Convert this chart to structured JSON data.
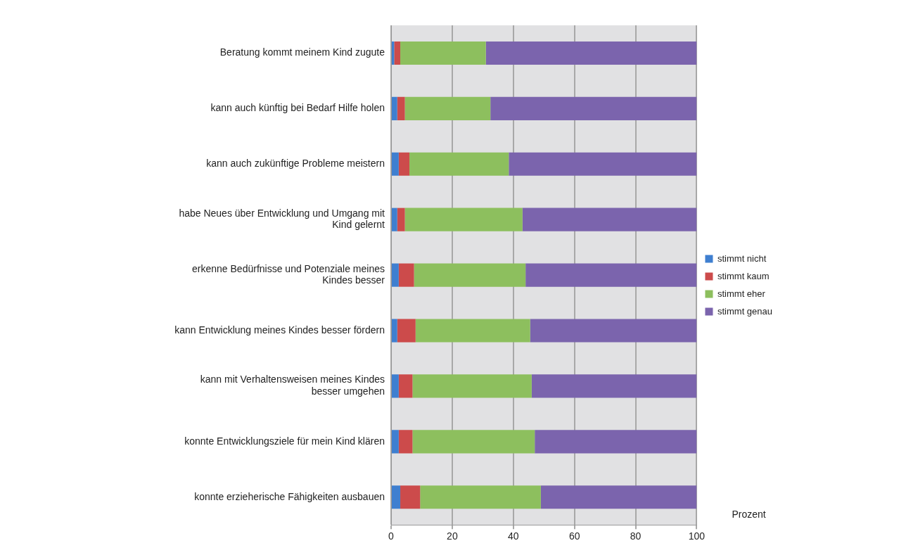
{
  "chart_data": {
    "type": "bar",
    "orientation": "horizontal",
    "stacked": true,
    "xlabel": "Prozent",
    "categories": [
      "Beratung kommt meinem Kind zugute",
      "kann auch künftig bei Bedarf Hilfe holen",
      "kann auch zukünftige Probleme meistern",
      "habe Neues über Entwicklung und Umgang mit Kind gelernt",
      "erkenne Bedürfnisse und Potenziale meines Kindes besser",
      "kann Entwicklung meines Kindes besser fördern",
      "kann mit Verhaltensweisen meines Kindes besser umgehen",
      "konnte Entwicklungsziele für mein Kind klären",
      "konnte erzieherische Fähigkeiten ausbauen"
    ],
    "series": [
      {
        "name": "stimmt nicht",
        "color": "#3f7fd0",
        "values": [
          1,
          2,
          2.5,
          2,
          2.5,
          2,
          2.5,
          2.5,
          3
        ]
      },
      {
        "name": "stimmt kaum",
        "color": "#cc4b4b",
        "values": [
          2,
          2.5,
          3.5,
          2.5,
          5,
          6,
          4.5,
          4.5,
          6.5
        ]
      },
      {
        "name": "stimmt eher",
        "color": "#8dbf5e",
        "values": [
          28,
          28,
          32.5,
          38.5,
          36.5,
          37.5,
          39,
          40,
          39.5
        ]
      },
      {
        "name": "stimmt genau",
        "color": "#7b64ad",
        "values": [
          69,
          67.5,
          61.5,
          57,
          56,
          54.5,
          54,
          53,
          51
        ]
      }
    ],
    "xlim": [
      0,
      100
    ],
    "xticks": [
      0,
      20,
      40,
      60,
      80,
      100
    ],
    "grid": "x",
    "legend": "right"
  }
}
